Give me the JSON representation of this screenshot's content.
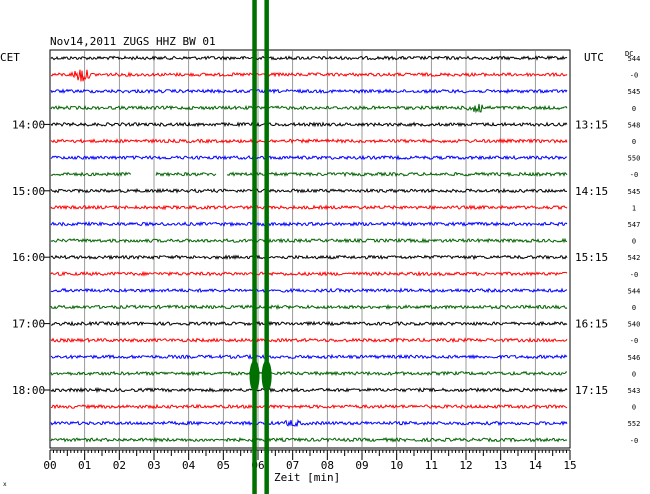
{
  "chart_data": {
    "type": "line",
    "title": "Nov14,2011   ZUGS HHZ BW 01",
    "left_axis_label": "CET",
    "right_axis_label": "UTC",
    "dc_label": "DC",
    "xlabel": "Zeit [min]",
    "xlim": [
      0,
      15
    ],
    "x_ticks": [
      "00",
      "01",
      "02",
      "03",
      "04",
      "05",
      "06",
      "07",
      "08",
      "09",
      "10",
      "11",
      "12",
      "13",
      "14",
      "15"
    ],
    "grid": true,
    "trace_colors": [
      "#000000",
      "#ff0000",
      "#0000ff",
      "#006400"
    ],
    "marker_color": "#007000",
    "cet_hour_labels": [
      {
        "row": 4,
        "text": "14:00"
      },
      {
        "row": 8,
        "text": "15:00"
      },
      {
        "row": 12,
        "text": "16:00"
      },
      {
        "row": 16,
        "text": "17:00"
      },
      {
        "row": 20,
        "text": "18:00"
      }
    ],
    "utc_labels": [
      {
        "row": 4,
        "text": "13:15"
      },
      {
        "row": 8,
        "text": "14:15"
      },
      {
        "row": 12,
        "text": "15:15"
      },
      {
        "row": 16,
        "text": "16:15"
      },
      {
        "row": 20,
        "text": "17:15"
      }
    ],
    "dc_values": [
      "544",
      "-0",
      "545",
      "0",
      "548",
      "0",
      "550",
      "-0",
      "545",
      "1",
      "547",
      "0",
      "542",
      "-0",
      "544",
      "0",
      "540",
      "-0",
      "546",
      "0",
      "543",
      "0",
      "552",
      "-0"
    ],
    "rows": 24,
    "event_markers_min": [
      5.9,
      6.25
    ],
    "events": [
      {
        "row": 1,
        "minute": 0.9,
        "amplitude": 8
      },
      {
        "row": 3,
        "minute": 12.3,
        "amplitude": 7
      },
      {
        "row": 22,
        "minute": 7.0,
        "amplitude": 3
      }
    ],
    "gaps": [
      {
        "row": 7,
        "from": 2.35,
        "to": 3.05
      },
      {
        "row": 7,
        "from": 4.8,
        "to": 5.1
      }
    ],
    "footer_mark": "x"
  }
}
